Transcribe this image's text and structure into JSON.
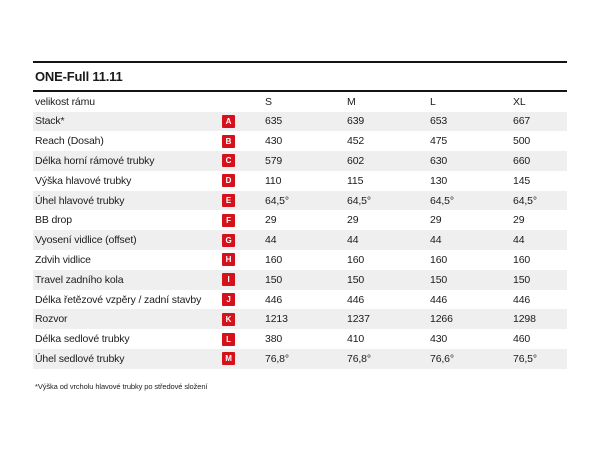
{
  "page": {
    "title": "ONE-Full 11.11",
    "footnote": "*Výška od vrcholu hlavové trubky po středové složení"
  },
  "table": {
    "header": {
      "label": "velikost rámu",
      "sizes": [
        "S",
        "M",
        "L",
        "XL"
      ]
    },
    "rows": [
      {
        "label": "Stack*",
        "letter": "A",
        "values": [
          "635",
          "639",
          "653",
          "667"
        ]
      },
      {
        "label": "Reach (Dosah)",
        "letter": "B",
        "values": [
          "430",
          "452",
          "475",
          "500"
        ]
      },
      {
        "label": "Délka horní rámové trubky",
        "letter": "C",
        "values": [
          "579",
          "602",
          "630",
          "660"
        ]
      },
      {
        "label": "Výška hlavové trubky",
        "letter": "D",
        "values": [
          "110",
          "115",
          "130",
          "145"
        ]
      },
      {
        "label": "Úhel hlavové trubky",
        "letter": "E",
        "values": [
          "64,5°",
          "64,5°",
          "64,5°",
          "64,5°"
        ]
      },
      {
        "label": "BB drop",
        "letter": "F",
        "values": [
          "29",
          "29",
          "29",
          "29"
        ]
      },
      {
        "label": "Vyosení vidlice (offset)",
        "letter": "G",
        "values": [
          "44",
          "44",
          "44",
          "44"
        ]
      },
      {
        "label": "Zdvih vidlice",
        "letter": "H",
        "values": [
          "160",
          "160",
          "160",
          "160"
        ]
      },
      {
        "label": "Travel zadního kola",
        "letter": "I",
        "values": [
          "150",
          "150",
          "150",
          "150"
        ]
      },
      {
        "label": "Délka řetězové vzpěry / zadní stavby",
        "letter": "J",
        "values": [
          "446",
          "446",
          "446",
          "446"
        ]
      },
      {
        "label": "Rozvor",
        "letter": "K",
        "values": [
          "1213",
          "1237",
          "1266",
          "1298"
        ]
      },
      {
        "label": "Délka sedlové trubky",
        "letter": "L",
        "values": [
          "380",
          "410",
          "430",
          "460"
        ]
      },
      {
        "label": "Úhel sedlové trubky",
        "letter": "M",
        "values": [
          "76,8°",
          "76,8°",
          "76,6°",
          "76,5°"
        ]
      }
    ]
  },
  "colors": {
    "badge_red": "#d5121b",
    "zebra_gray": "#efefef",
    "rule_black": "#141414"
  }
}
